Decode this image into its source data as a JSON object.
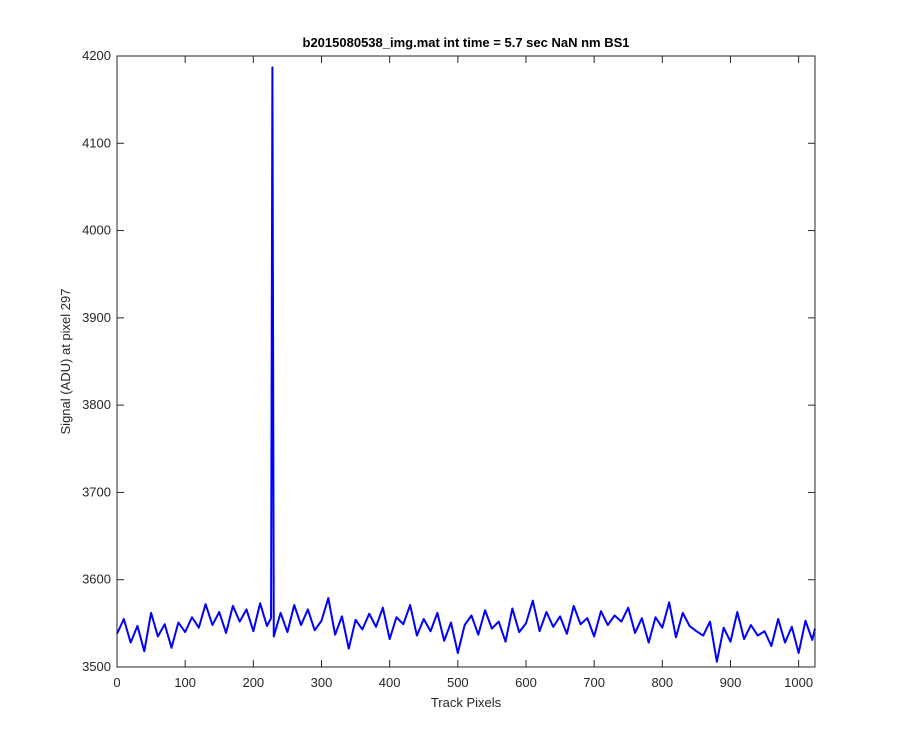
{
  "chart_data": {
    "type": "line",
    "title": "b2015080538_img.mat int time = 5.7 sec  NaN nm BS1",
    "xlabel": "Track Pixels",
    "ylabel": "Signal (ADU) at pixel 297",
    "xlim": [
      0,
      1024
    ],
    "ylim": [
      3500,
      4200
    ],
    "xticks": [
      0,
      100,
      200,
      300,
      400,
      500,
      600,
      700,
      800,
      900,
      1000
    ],
    "yticks": [
      3500,
      3600,
      3700,
      3800,
      3900,
      4000,
      4100,
      4200
    ],
    "grid": false,
    "series": [
      {
        "color": "#0000ff",
        "x": [
          0,
          10,
          20,
          30,
          40,
          50,
          60,
          70,
          80,
          90,
          100,
          110,
          120,
          130,
          140,
          150,
          160,
          170,
          180,
          190,
          200,
          210,
          220,
          226,
          228,
          230,
          240,
          250,
          260,
          270,
          280,
          290,
          300,
          310,
          320,
          330,
          340,
          350,
          360,
          370,
          380,
          390,
          400,
          410,
          420,
          430,
          440,
          450,
          460,
          470,
          480,
          490,
          500,
          510,
          520,
          530,
          540,
          550,
          560,
          570,
          580,
          590,
          600,
          610,
          620,
          630,
          640,
          650,
          660,
          670,
          680,
          690,
          700,
          710,
          720,
          730,
          740,
          750,
          760,
          770,
          780,
          790,
          800,
          810,
          820,
          830,
          840,
          850,
          860,
          870,
          880,
          890,
          900,
          910,
          920,
          930,
          940,
          950,
          960,
          970,
          980,
          990,
          1000,
          1010,
          1020,
          1024
        ],
        "y": [
          3538,
          3555,
          3528,
          3547,
          3518,
          3562,
          3535,
          3549,
          3522,
          3551,
          3540,
          3557,
          3545,
          3572,
          3548,
          3563,
          3539,
          3570,
          3552,
          3566,
          3541,
          3573,
          3547,
          3556,
          4187,
          3535,
          3562,
          3540,
          3571,
          3548,
          3566,
          3542,
          3553,
          3579,
          3537,
          3558,
          3521,
          3554,
          3543,
          3561,
          3546,
          3568,
          3532,
          3557,
          3549,
          3571,
          3536,
          3555,
          3541,
          3562,
          3530,
          3551,
          3516,
          3548,
          3559,
          3537,
          3565,
          3544,
          3552,
          3529,
          3567,
          3540,
          3550,
          3576,
          3541,
          3563,
          3546,
          3558,
          3538,
          3570,
          3549,
          3556,
          3535,
          3564,
          3548,
          3559,
          3552,
          3568,
          3539,
          3556,
          3528,
          3557,
          3545,
          3574,
          3534,
          3562,
          3547,
          3541,
          3536,
          3552,
          3506,
          3545,
          3529,
          3563,
          3532,
          3548,
          3536,
          3541,
          3524,
          3555,
          3528,
          3546,
          3516,
          3553,
          3531,
          3544
        ]
      }
    ]
  }
}
